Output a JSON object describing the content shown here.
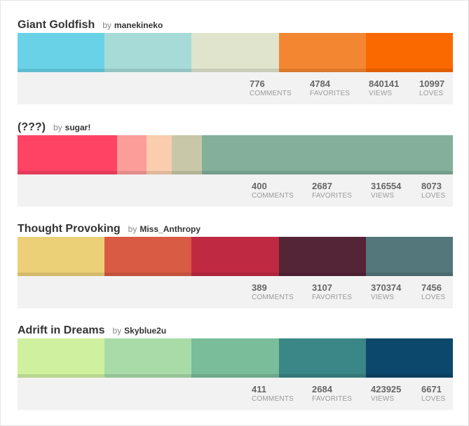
{
  "palettes": [
    {
      "title": "Giant Goldfish",
      "by": "by",
      "author": "manekineko",
      "colors": [
        {
          "hex": "#69D2E7",
          "share": 0.2
        },
        {
          "hex": "#A7DBD8",
          "share": 0.2
        },
        {
          "hex": "#E0E4CC",
          "share": 0.2
        },
        {
          "hex": "#F38630",
          "share": 0.2
        },
        {
          "hex": "#FA6900",
          "share": 0.2
        }
      ],
      "stats": {
        "comments": "776",
        "comments_label": "COMMENTS",
        "favorites": "4784",
        "favorites_label": "FAVORITES",
        "views": "840141",
        "views_label": "VIEWS",
        "loves": "10997",
        "loves_label": "LOVES"
      }
    },
    {
      "title": "(???)",
      "by": "by",
      "author": "sugar!",
      "colors": [
        {
          "hex": "#FE4365",
          "share": 0.228
        },
        {
          "hex": "#FC9D9A",
          "share": 0.069
        },
        {
          "hex": "#F9CDAD",
          "share": 0.058
        },
        {
          "hex": "#C8C8A9",
          "share": 0.069
        },
        {
          "hex": "#83AF9B",
          "share": 0.576
        }
      ],
      "stats": {
        "comments": "400",
        "comments_label": "COMMENTS",
        "favorites": "2687",
        "favorites_label": "FAVORITES",
        "views": "316554",
        "views_label": "VIEWS",
        "loves": "8073",
        "loves_label": "LOVES"
      }
    },
    {
      "title": "Thought Provoking",
      "by": "by",
      "author": "Miss_Anthropy",
      "colors": [
        {
          "hex": "#ECD078",
          "share": 0.2
        },
        {
          "hex": "#D95B43",
          "share": 0.2
        },
        {
          "hex": "#C02942",
          "share": 0.2
        },
        {
          "hex": "#542437",
          "share": 0.2
        },
        {
          "hex": "#53777A",
          "share": 0.2
        }
      ],
      "stats": {
        "comments": "389",
        "comments_label": "COMMENTS",
        "favorites": "3107",
        "favorites_label": "FAVORITES",
        "views": "370374",
        "views_label": "VIEWS",
        "loves": "7456",
        "loves_label": "LOVES"
      }
    },
    {
      "title": "Adrift in Dreams",
      "by": "by",
      "author": "Skyblue2u",
      "colors": [
        {
          "hex": "#CFF09E",
          "share": 0.2
        },
        {
          "hex": "#A8DBA8",
          "share": 0.2
        },
        {
          "hex": "#79BD9A",
          "share": 0.2
        },
        {
          "hex": "#3B8686",
          "share": 0.2
        },
        {
          "hex": "#0B486B",
          "share": 0.2
        }
      ],
      "stats": {
        "comments": "411",
        "comments_label": "COMMENTS",
        "favorites": "2684",
        "favorites_label": "FAVORITES",
        "views": "423925",
        "views_label": "VIEWS",
        "loves": "6671",
        "loves_label": "LOVES"
      }
    }
  ]
}
